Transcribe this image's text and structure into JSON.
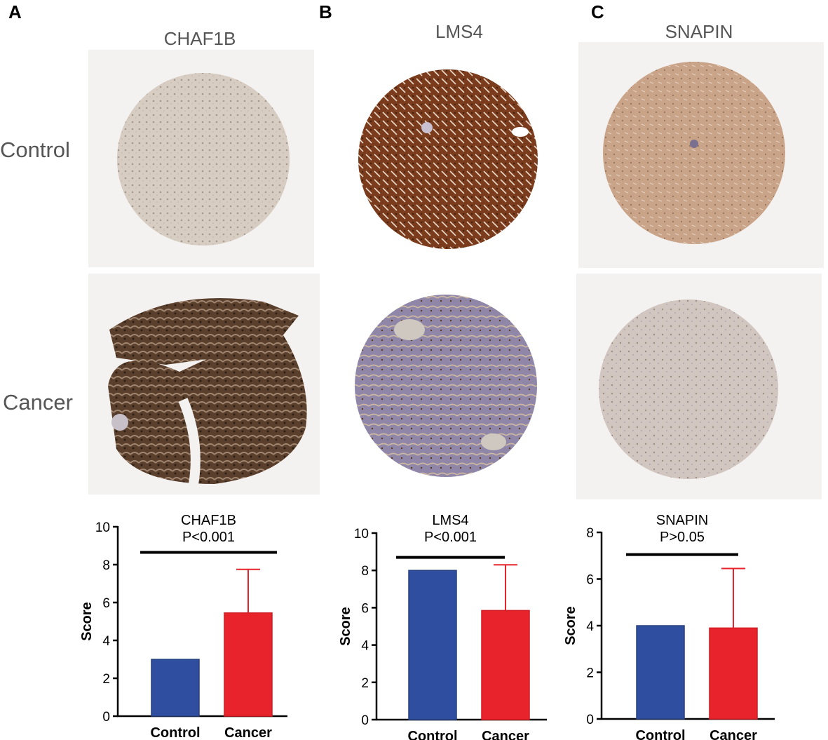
{
  "panels": [
    {
      "letter": "A",
      "gene": "CHAF1B"
    },
    {
      "letter": "B",
      "gene": "LMS4"
    },
    {
      "letter": "C",
      "gene": "SNAPIN"
    }
  ],
  "row_labels": {
    "control": "Control",
    "cancer": "Cancer"
  },
  "colors": {
    "control": "#2f4ea0",
    "cancer": "#e8232b",
    "axis": "#000000"
  },
  "chart_data": [
    {
      "type": "bar",
      "title": "CHAF1B",
      "subtitle": "P<0.001",
      "categories": [
        "Control",
        "Cancer"
      ],
      "values": [
        3.0,
        5.45
      ],
      "error_upper": [
        0,
        2.3
      ],
      "ylabel": "Score",
      "ylim": [
        0,
        10
      ],
      "yticks": [
        0,
        2,
        4,
        6,
        8,
        10
      ],
      "bracket_y": 8.65
    },
    {
      "type": "bar",
      "title": "LMS4",
      "subtitle": "P<0.001",
      "categories": [
        "Control",
        "Cancer"
      ],
      "values": [
        8.0,
        5.85
      ],
      "error_upper": [
        0,
        2.45
      ],
      "ylabel": "Score",
      "ylim": [
        0,
        10
      ],
      "yticks": [
        0,
        2,
        4,
        6,
        8,
        10
      ],
      "bracket_y": 8.7
    },
    {
      "type": "bar",
      "title": "SNAPIN",
      "subtitle": "P>0.05",
      "categories": [
        "Control",
        "Cancer"
      ],
      "values": [
        4.0,
        3.9
      ],
      "error_upper": [
        0,
        2.55
      ],
      "ylabel": "Score",
      "ylim": [
        0,
        8
      ],
      "yticks": [
        0,
        2,
        4,
        6,
        8
      ],
      "bracket_y": 7.05
    }
  ]
}
